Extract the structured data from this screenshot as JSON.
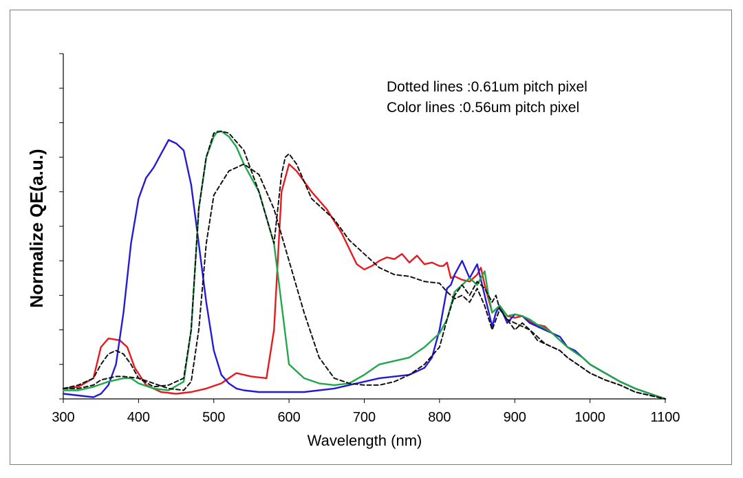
{
  "chart_data": {
    "type": "line",
    "title": "",
    "xlabel": "Wavelength (nm)",
    "ylabel": "Normalize QE(a.u.)",
    "xlim": [
      300,
      1100
    ],
    "ylim": [
      0,
      1
    ],
    "xticks": [
      "300",
      "400",
      "500",
      "600",
      "700",
      "800",
      "900",
      "1000",
      "1100"
    ],
    "y_tick_count": 10,
    "y_tick_labels_shown": false,
    "grid": false,
    "annotations": [
      "Dotted lines :0.61um pitch pixel",
      "Color lines :0.56um pitch pixel"
    ],
    "series": [
      {
        "color": "#e8191d",
        "dashed": false,
        "x": [
          300,
          320,
          340,
          350,
          360,
          375,
          385,
          395,
          410,
          430,
          450,
          470,
          490,
          510,
          530,
          550,
          570,
          580,
          590,
          600,
          610,
          630,
          650,
          670,
          690,
          700,
          710,
          720,
          730,
          740,
          750,
          760,
          770,
          780,
          790,
          800,
          805,
          810,
          815,
          820,
          830,
          840,
          850,
          855,
          860,
          870,
          875,
          880,
          890,
          900,
          910,
          920,
          930,
          940,
          950,
          960,
          970,
          980,
          990,
          1000,
          1020,
          1040,
          1060,
          1080,
          1100
        ],
        "y": [
          0.03,
          0.035,
          0.06,
          0.15,
          0.175,
          0.17,
          0.15,
          0.09,
          0.04,
          0.02,
          0.015,
          0.02,
          0.03,
          0.045,
          0.075,
          0.065,
          0.06,
          0.2,
          0.6,
          0.68,
          0.66,
          0.6,
          0.55,
          0.48,
          0.39,
          0.375,
          0.385,
          0.4,
          0.41,
          0.405,
          0.42,
          0.395,
          0.415,
          0.39,
          0.395,
          0.385,
          0.385,
          0.395,
          0.35,
          0.355,
          0.345,
          0.34,
          0.36,
          0.38,
          0.33,
          0.25,
          0.26,
          0.27,
          0.24,
          0.235,
          0.24,
          0.225,
          0.215,
          0.21,
          0.19,
          0.17,
          0.15,
          0.135,
          0.12,
          0.1,
          0.075,
          0.05,
          0.03,
          0.015,
          0.0
        ]
      },
      {
        "color": "#2419d6",
        "dashed": false,
        "x": [
          300,
          320,
          340,
          350,
          360,
          370,
          380,
          390,
          400,
          410,
          420,
          430,
          440,
          450,
          460,
          470,
          480,
          490,
          500,
          510,
          520,
          530,
          540,
          560,
          580,
          600,
          620,
          640,
          660,
          680,
          700,
          720,
          740,
          760,
          780,
          790,
          800,
          805,
          810,
          815,
          820,
          830,
          840,
          850,
          860,
          870,
          875,
          880,
          890,
          900,
          910,
          920,
          930,
          940,
          950,
          960,
          970,
          980,
          990,
          1000,
          1020,
          1040,
          1060,
          1080,
          1100
        ],
        "y": [
          0.015,
          0.01,
          0.005,
          0.015,
          0.04,
          0.1,
          0.25,
          0.45,
          0.58,
          0.64,
          0.67,
          0.71,
          0.75,
          0.74,
          0.72,
          0.62,
          0.45,
          0.28,
          0.14,
          0.07,
          0.045,
          0.03,
          0.025,
          0.02,
          0.02,
          0.02,
          0.02,
          0.025,
          0.03,
          0.04,
          0.05,
          0.06,
          0.065,
          0.07,
          0.09,
          0.12,
          0.2,
          0.26,
          0.32,
          0.33,
          0.36,
          0.4,
          0.35,
          0.39,
          0.3,
          0.21,
          0.25,
          0.27,
          0.22,
          0.245,
          0.24,
          0.22,
          0.21,
          0.2,
          0.19,
          0.18,
          0.15,
          0.14,
          0.12,
          0.1,
          0.075,
          0.05,
          0.03,
          0.015,
          0.0
        ]
      },
      {
        "color": "#1fa84a",
        "dashed": false,
        "x": [
          300,
          320,
          340,
          360,
          380,
          390,
          400,
          420,
          440,
          460,
          470,
          480,
          490,
          500,
          505,
          510,
          520,
          530,
          540,
          560,
          580,
          600,
          620,
          640,
          660,
          680,
          700,
          720,
          740,
          760,
          780,
          800,
          810,
          820,
          830,
          840,
          850,
          860,
          865,
          870,
          880,
          890,
          900,
          910,
          920,
          930,
          940,
          950,
          960,
          970,
          980,
          990,
          1000,
          1020,
          1040,
          1060,
          1080,
          1100
        ],
        "y": [
          0.025,
          0.025,
          0.035,
          0.05,
          0.06,
          0.06,
          0.045,
          0.03,
          0.025,
          0.05,
          0.2,
          0.55,
          0.7,
          0.76,
          0.775,
          0.775,
          0.76,
          0.73,
          0.68,
          0.6,
          0.45,
          0.1,
          0.06,
          0.045,
          0.04,
          0.045,
          0.07,
          0.1,
          0.11,
          0.12,
          0.15,
          0.19,
          0.23,
          0.31,
          0.33,
          0.35,
          0.33,
          0.37,
          0.3,
          0.25,
          0.27,
          0.24,
          0.245,
          0.24,
          0.23,
          0.215,
          0.205,
          0.19,
          0.17,
          0.15,
          0.135,
          0.12,
          0.1,
          0.075,
          0.05,
          0.03,
          0.015,
          0.0
        ]
      },
      {
        "color": "#111111",
        "dashed": true,
        "x": [
          300,
          320,
          340,
          350,
          360,
          370,
          380,
          390,
          400,
          420,
          440,
          460,
          470,
          480,
          490,
          500,
          510,
          520,
          540,
          560,
          580,
          590,
          595,
          600,
          610,
          620,
          630,
          640,
          660,
          680,
          700,
          720,
          740,
          760,
          780,
          800,
          810,
          820,
          830,
          840,
          850,
          860,
          870,
          880,
          890,
          900,
          910,
          920,
          930,
          940,
          950,
          960,
          970,
          980,
          990,
          1000,
          1020,
          1040,
          1060,
          1080,
          1100
        ],
        "y": [
          0.03,
          0.04,
          0.06,
          0.1,
          0.13,
          0.14,
          0.13,
          0.1,
          0.06,
          0.035,
          0.04,
          0.06,
          0.2,
          0.55,
          0.7,
          0.77,
          0.775,
          0.77,
          0.72,
          0.6,
          0.45,
          0.65,
          0.7,
          0.71,
          0.68,
          0.63,
          0.58,
          0.56,
          0.52,
          0.46,
          0.42,
          0.38,
          0.36,
          0.355,
          0.34,
          0.335,
          0.31,
          0.29,
          0.3,
          0.28,
          0.32,
          0.27,
          0.2,
          0.26,
          0.23,
          0.2,
          0.22,
          0.2,
          0.17,
          0.16,
          0.15,
          0.14,
          0.12,
          0.105,
          0.09,
          0.075,
          0.055,
          0.04,
          0.02,
          0.01,
          0.0
        ]
      },
      {
        "color": "#111111",
        "dashed": true,
        "x": [
          300,
          320,
          340,
          350,
          360,
          370,
          380,
          400,
          420,
          440,
          460,
          470,
          480,
          490,
          500,
          520,
          540,
          560,
          580,
          600,
          620,
          640,
          660,
          680,
          700,
          720,
          740,
          760,
          780,
          800,
          810,
          820,
          830,
          840,
          850,
          860,
          870,
          875,
          880,
          890,
          900,
          910,
          920,
          930,
          940,
          950,
          960,
          970,
          980,
          990,
          1000,
          1020,
          1040,
          1060,
          1080,
          1100
        ],
        "y": [
          0.03,
          0.03,
          0.04,
          0.055,
          0.06,
          0.065,
          0.065,
          0.06,
          0.045,
          0.03,
          0.025,
          0.05,
          0.2,
          0.45,
          0.59,
          0.66,
          0.68,
          0.65,
          0.55,
          0.4,
          0.25,
          0.12,
          0.06,
          0.045,
          0.04,
          0.04,
          0.05,
          0.07,
          0.1,
          0.15,
          0.23,
          0.3,
          0.33,
          0.3,
          0.34,
          0.32,
          0.28,
          0.3,
          0.26,
          0.23,
          0.22,
          0.21,
          0.2,
          0.18,
          0.16,
          0.15,
          0.14,
          0.12,
          0.105,
          0.09,
          0.075,
          0.055,
          0.04,
          0.02,
          0.01,
          0.0
        ]
      }
    ]
  }
}
